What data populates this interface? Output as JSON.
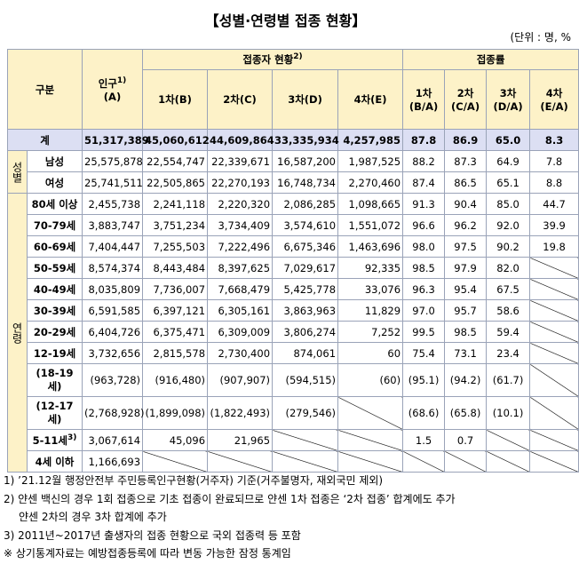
{
  "title": "【성별·연령별 접종 현황】",
  "unit": "(단위 : 명, %",
  "header": {
    "group": "구분",
    "population": "인구",
    "population_note": "1)",
    "population_sub": "(A)",
    "vaccinated": "접종자 현황",
    "vaccinated_note": "2)",
    "rate": "접종률",
    "dose_columns": [
      "1차(B)",
      "2차(C)",
      "3차(D)",
      "4차(E)"
    ],
    "rate_columns": [
      {
        "label": "1차",
        "sub": "(B/A)"
      },
      {
        "label": "2차",
        "sub": "(C/A)"
      },
      {
        "label": "3차",
        "sub": "(D/A)"
      },
      {
        "label": "4차",
        "sub": "(E/A)"
      }
    ]
  },
  "total": {
    "label": "계",
    "cells": [
      "51,317,389",
      "45,060,612",
      "44,609,864",
      "33,335,934",
      "4,257,985",
      "87.8",
      "86.9",
      "65.0",
      "8.3"
    ]
  },
  "groups": [
    {
      "label": "성별",
      "rows": [
        {
          "label": "남성",
          "cells": [
            "25,575,878",
            "22,554,747",
            "22,339,671",
            "16,587,200",
            "1,987,525",
            "88.2",
            "87.3",
            "64.9",
            "7.8"
          ]
        },
        {
          "label": "여성",
          "cells": [
            "25,741,511",
            "22,505,865",
            "22,270,193",
            "16,748,734",
            "2,270,460",
            "87.4",
            "86.5",
            "65.1",
            "8.8"
          ]
        }
      ]
    },
    {
      "label": "연령",
      "rows": [
        {
          "label": "80세 이상",
          "cells": [
            "2,455,738",
            "2,241,118",
            "2,220,320",
            "2,086,285",
            "1,098,665",
            "91.3",
            "90.4",
            "85.0",
            "44.7"
          ]
        },
        {
          "label": "70-79세",
          "cells": [
            "3,883,747",
            "3,751,234",
            "3,734,409",
            "3,574,610",
            "1,551,072",
            "96.6",
            "96.2",
            "92.0",
            "39.9"
          ]
        },
        {
          "label": "60-69세",
          "cells": [
            "7,404,447",
            "7,255,503",
            "7,222,496",
            "6,675,346",
            "1,463,696",
            "98.0",
            "97.5",
            "90.2",
            "19.8"
          ]
        },
        {
          "label": "50-59세",
          "cells": [
            "8,574,374",
            "8,443,484",
            "8,397,625",
            "7,029,617",
            "92,335",
            "98.5",
            "97.9",
            "82.0",
            null
          ]
        },
        {
          "label": "40-49세",
          "cells": [
            "8,035,809",
            "7,736,007",
            "7,668,479",
            "5,425,778",
            "33,076",
            "96.3",
            "95.4",
            "67.5",
            null
          ]
        },
        {
          "label": "30-39세",
          "cells": [
            "6,591,585",
            "6,397,121",
            "6,305,161",
            "3,863,963",
            "11,829",
            "97.0",
            "95.7",
            "58.6",
            null
          ]
        },
        {
          "label": "20-29세",
          "cells": [
            "6,404,726",
            "6,375,471",
            "6,309,009",
            "3,806,274",
            "7,252",
            "99.5",
            "98.5",
            "59.4",
            null
          ]
        },
        {
          "label": "12-19세",
          "cells": [
            "3,732,656",
            "2,815,578",
            "2,730,400",
            "874,061",
            "60",
            "75.4",
            "73.1",
            "23.4",
            null
          ]
        },
        {
          "label": "(18-19 세)",
          "cells": [
            "(963,728)",
            "(916,480)",
            "(907,907)",
            "(594,515)",
            "(60)",
            "(95.1)",
            "(94.2)",
            "(61.7)",
            null
          ]
        },
        {
          "label": "(12-17 세)",
          "cells": [
            "(2,768,928)",
            "(1,899,098)",
            "(1,822,493)",
            "(279,546)",
            null,
            "(68.6)",
            "(65.8)",
            "(10.1)",
            null
          ]
        },
        {
          "label": "5-11세",
          "note": "3)",
          "cells": [
            "3,067,614",
            "45,096",
            "21,965",
            null,
            null,
            "1.5",
            "0.7",
            null,
            null
          ]
        },
        {
          "label": "4세 이하",
          "cells": [
            "1,166,693",
            null,
            null,
            null,
            null,
            null,
            null,
            null,
            null
          ]
        }
      ]
    }
  ],
  "footnotes": [
    "1) ’21.12월 행정안전부 주민등록인구현황(거주자) 기준(거주불명자, 재외국민 제외)",
    "2) 얀센 백신의 경우 1회 접종으로 기초 접종이 완료되므로 얀센 1차 접종은 ‘2차 접종’ 합계에도 추가",
    "얀센 2차의 경우 3차 합계에 추가",
    "3) 2011년~2017년 출생자의 접종 현황으로 국외 접종력 등 포함",
    "※ 상기통계자료는 예방접종등록에 따라 변동 가능한 잠정 통계임"
  ]
}
